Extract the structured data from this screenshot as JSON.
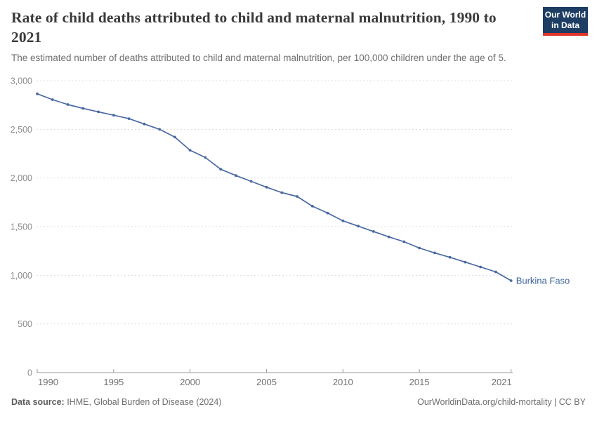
{
  "header": {
    "title": "Rate of child deaths attributed to child and maternal malnutrition, 1990 to 2021",
    "subtitle": "The estimated number of deaths attributed to child and maternal malnutrition, per 100,000 children under the age of 5."
  },
  "logo": {
    "line1": "Our World",
    "line2": "in Data"
  },
  "footer": {
    "datasource_label": "Data source:",
    "datasource_value": " IHME, Global Burden of Disease (2024)",
    "link": "OurWorldinData.org/child-mortality | CC BY"
  },
  "theme": {
    "line_color": "#4a69a2",
    "end_label_color": "#3d649c",
    "grid_color": "#dcdcdc",
    "axis_color": "#9a9a9a",
    "ytick_color": "#8c8c8c",
    "xtick_color": "#707070",
    "logo_bg": "#1d3d63",
    "logo_red": "#e0352b"
  },
  "chart_data": {
    "type": "line",
    "title": "Rate of child deaths attributed to child and maternal malnutrition, 1990 to 2021",
    "xlabel": "",
    "ylabel": "",
    "xlim": [
      1990,
      2021
    ],
    "ylim": [
      0,
      3000
    ],
    "grid": "horizontal-dashed",
    "legend_position": "end-of-line-label",
    "xticks": [
      1990,
      1995,
      2000,
      2005,
      2010,
      2015,
      2021
    ],
    "yticks": [
      0,
      500,
      1000,
      1500,
      2000,
      2500,
      3000
    ],
    "x": [
      1990,
      1991,
      1992,
      1993,
      1994,
      1995,
      1996,
      1997,
      1998,
      1999,
      2000,
      2001,
      2002,
      2003,
      2004,
      2005,
      2006,
      2007,
      2008,
      2009,
      2010,
      2011,
      2012,
      2013,
      2014,
      2015,
      2016,
      2017,
      2018,
      2019,
      2020,
      2021
    ],
    "series": [
      {
        "name": "Burkina Faso",
        "values": [
          2865,
          2805,
          2755,
          2715,
          2680,
          2645,
          2610,
          2555,
          2500,
          2420,
          2285,
          2210,
          2090,
          2025,
          1965,
          1905,
          1850,
          1810,
          1710,
          1640,
          1560,
          1505,
          1450,
          1395,
          1345,
          1280,
          1230,
          1185,
          1135,
          1085,
          1035,
          945
        ]
      }
    ]
  }
}
